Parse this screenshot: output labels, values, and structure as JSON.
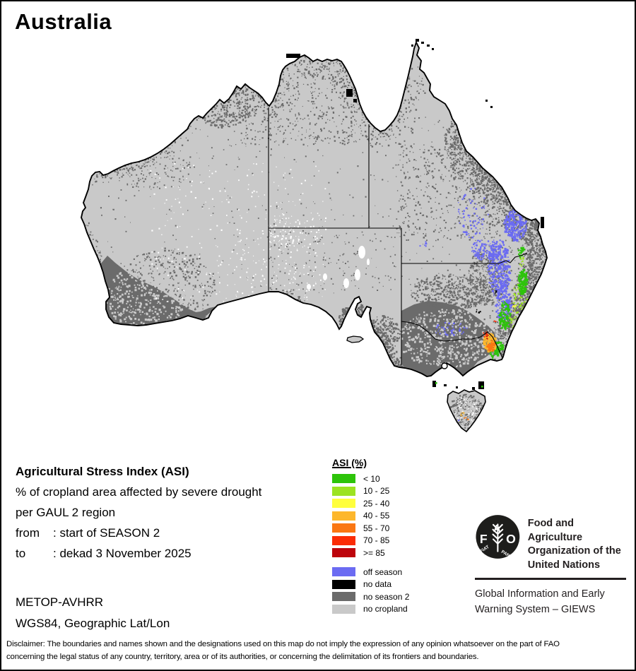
{
  "title": "Australia",
  "info": {
    "heading": "Agricultural Stress Index (ASI)",
    "line1": "% of cropland area affected by severe drought",
    "line2": "per GAUL 2 region",
    "from_label": "from",
    "from_value": ": start of SEASON 2",
    "to_label": "to",
    "to_value": ": dekad 3 November 2025",
    "sensor": "METOP-AVHRR",
    "projection": "WGS84, Geographic Lat/Lon"
  },
  "legend": {
    "title": "ASI (%)",
    "asi_classes": [
      {
        "label": "< 10",
        "color": "#2dc40a"
      },
      {
        "label": "10 - 25",
        "color": "#9ce321"
      },
      {
        "label": "25 - 40",
        "color": "#ffff3d"
      },
      {
        "label": "40 - 55",
        "color": "#fdb72c"
      },
      {
        "label": "55 - 70",
        "color": "#fa7713"
      },
      {
        "label": "70 - 85",
        "color": "#fb2c06"
      },
      {
        "label": ">= 85",
        "color": "#bd040b"
      }
    ],
    "other_classes": [
      {
        "label": "off season",
        "color": "#6b6bf2"
      },
      {
        "label": "no data",
        "color": "#000000"
      },
      {
        "label": "no season 2",
        "color": "#6b6b6b"
      },
      {
        "label": "no cropland",
        "color": "#c9c9c9"
      }
    ]
  },
  "fao": {
    "org_lines": [
      "Food and Agriculture",
      "Organization of the",
      "United Nations"
    ],
    "giews_lines": [
      "Global Information and Early",
      "Warning System – GIEWS"
    ],
    "logo_letters": [
      "F",
      "A",
      "O"
    ],
    "logo_motto": [
      "FIAT",
      "PANIS"
    ]
  },
  "disclaimer": {
    "lines": [
      "Disclaimer: The boundaries and names shown and the designations used on this map do not imply the expression of any opinion whatsoever on the part of FAO",
      "concerning the legal status of any country, territory, area or of its authorities, or concerning the delimitation of its frontiers and boundaries."
    ]
  },
  "map": {
    "region": "Australia",
    "colors": {
      "land": "#c9c9c9",
      "dark": "#6b6b6b",
      "blue": "#6b6bf2",
      "green": "#2dc40a",
      "lgreen": "#9ce321",
      "yellow": "#ffff3d",
      "orange": "#fdb72c",
      "dorange": "#fa7713",
      "red": "#fb2c06",
      "dred": "#bd040b",
      "white": "#ffffff",
      "black": "#000000",
      "coast": "#000000"
    }
  }
}
